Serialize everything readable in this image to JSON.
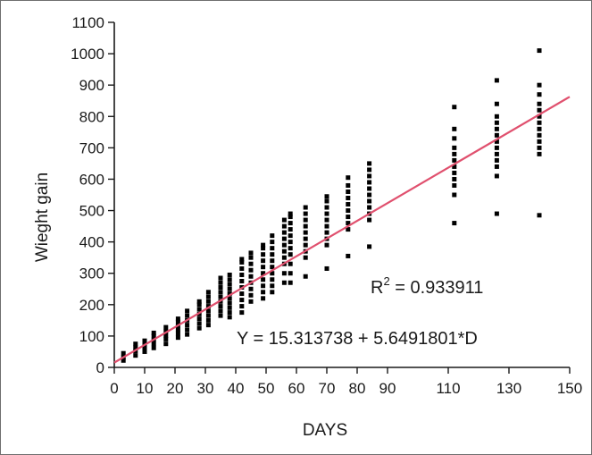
{
  "chart_data": {
    "type": "scatter",
    "title": "",
    "xlabel": "DAYS",
    "ylabel": "Wieght gain",
    "xlim": [
      0,
      150
    ],
    "ylim": [
      0,
      1100
    ],
    "x_ticks": [
      0,
      10,
      20,
      30,
      40,
      50,
      60,
      70,
      80,
      90,
      110,
      130,
      150
    ],
    "y_ticks": [
      0,
      100,
      200,
      300,
      400,
      500,
      600,
      700,
      800,
      900,
      1000,
      1100
    ],
    "grid": false,
    "colors": {
      "points": "#000000",
      "fit_line": "#e0506e",
      "axes": "#1a1a1a"
    },
    "fit_line": {
      "intercept": 15.313738,
      "slope": 5.6491801,
      "x_range": [
        0,
        150
      ]
    },
    "annotations": {
      "r2_prefix": "R",
      "r2_sup": "2",
      "r2_suffix": " = 0.933911",
      "equation": "Y = 15.313738 + 5.6491801*D"
    },
    "series": [
      {
        "points": [
          [
            3,
            22
          ],
          [
            3,
            32
          ],
          [
            3,
            45
          ],
          [
            7,
            38
          ],
          [
            7,
            52
          ],
          [
            7,
            63
          ],
          [
            7,
            75
          ],
          [
            10,
            50
          ],
          [
            10,
            62
          ],
          [
            10,
            72
          ],
          [
            10,
            85
          ],
          [
            13,
            62
          ],
          [
            13,
            75
          ],
          [
            13,
            88
          ],
          [
            13,
            100
          ],
          [
            13,
            110
          ],
          [
            17,
            75
          ],
          [
            17,
            90
          ],
          [
            17,
            102
          ],
          [
            17,
            115
          ],
          [
            17,
            128
          ],
          [
            21,
            95
          ],
          [
            21,
            108
          ],
          [
            21,
            120
          ],
          [
            21,
            132
          ],
          [
            21,
            145
          ],
          [
            21,
            155
          ],
          [
            24,
            105
          ],
          [
            24,
            120
          ],
          [
            24,
            135
          ],
          [
            24,
            150
          ],
          [
            24,
            165
          ],
          [
            24,
            180
          ],
          [
            28,
            125
          ],
          [
            28,
            140
          ],
          [
            28,
            155
          ],
          [
            28,
            170
          ],
          [
            28,
            185
          ],
          [
            28,
            200
          ],
          [
            28,
            210
          ],
          [
            31,
            135
          ],
          [
            31,
            150
          ],
          [
            31,
            165
          ],
          [
            31,
            180
          ],
          [
            31,
            195
          ],
          [
            31,
            210
          ],
          [
            31,
            225
          ],
          [
            31,
            240
          ],
          [
            35,
            165
          ],
          [
            35,
            180
          ],
          [
            35,
            195
          ],
          [
            35,
            210
          ],
          [
            35,
            225
          ],
          [
            35,
            240
          ],
          [
            35,
            255
          ],
          [
            35,
            270
          ],
          [
            35,
            285
          ],
          [
            38,
            160
          ],
          [
            38,
            175
          ],
          [
            38,
            190
          ],
          [
            38,
            205
          ],
          [
            38,
            220
          ],
          [
            38,
            235
          ],
          [
            38,
            250
          ],
          [
            38,
            265
          ],
          [
            38,
            280
          ],
          [
            38,
            295
          ],
          [
            42,
            175
          ],
          [
            42,
            195
          ],
          [
            42,
            215
          ],
          [
            42,
            235
          ],
          [
            42,
            255
          ],
          [
            42,
            275
          ],
          [
            42,
            295
          ],
          [
            42,
            315
          ],
          [
            42,
            335
          ],
          [
            42,
            345
          ],
          [
            45,
            210
          ],
          [
            45,
            230
          ],
          [
            45,
            250
          ],
          [
            45,
            270
          ],
          [
            45,
            290
          ],
          [
            45,
            310
          ],
          [
            45,
            330
          ],
          [
            45,
            350
          ],
          [
            45,
            365
          ],
          [
            49,
            220
          ],
          [
            49,
            240
          ],
          [
            49,
            260
          ],
          [
            49,
            280
          ],
          [
            49,
            300
          ],
          [
            49,
            320
          ],
          [
            49,
            340
          ],
          [
            49,
            360
          ],
          [
            49,
            380
          ],
          [
            49,
            390
          ],
          [
            52,
            240
          ],
          [
            52,
            260
          ],
          [
            52,
            280
          ],
          [
            52,
            300
          ],
          [
            52,
            320
          ],
          [
            52,
            340
          ],
          [
            52,
            360
          ],
          [
            52,
            380
          ],
          [
            52,
            400
          ],
          [
            52,
            420
          ],
          [
            56,
            270
          ],
          [
            56,
            300
          ],
          [
            56,
            330
          ],
          [
            56,
            350
          ],
          [
            56,
            370
          ],
          [
            56,
            390
          ],
          [
            56,
            410
          ],
          [
            56,
            430
          ],
          [
            56,
            450
          ],
          [
            56,
            470
          ],
          [
            58,
            270
          ],
          [
            58,
            300
          ],
          [
            58,
            330
          ],
          [
            58,
            360
          ],
          [
            58,
            380
          ],
          [
            58,
            400
          ],
          [
            58,
            420
          ],
          [
            58,
            440
          ],
          [
            58,
            460
          ],
          [
            58,
            480
          ],
          [
            58,
            490
          ],
          [
            63,
            290
          ],
          [
            63,
            350
          ],
          [
            63,
            370
          ],
          [
            63,
            390
          ],
          [
            63,
            410
          ],
          [
            63,
            430
          ],
          [
            63,
            450
          ],
          [
            63,
            470
          ],
          [
            63,
            490
          ],
          [
            63,
            510
          ],
          [
            70,
            315
          ],
          [
            70,
            390
          ],
          [
            70,
            410
          ],
          [
            70,
            430
          ],
          [
            70,
            450
          ],
          [
            70,
            470
          ],
          [
            70,
            490
          ],
          [
            70,
            510
          ],
          [
            70,
            530
          ],
          [
            70,
            545
          ],
          [
            77,
            355
          ],
          [
            77,
            440
          ],
          [
            77,
            460
          ],
          [
            77,
            480
          ],
          [
            77,
            500
          ],
          [
            77,
            520
          ],
          [
            77,
            540
          ],
          [
            77,
            560
          ],
          [
            77,
            580
          ],
          [
            77,
            605
          ],
          [
            84,
            385
          ],
          [
            84,
            470
          ],
          [
            84,
            490
          ],
          [
            84,
            510
          ],
          [
            84,
            530
          ],
          [
            84,
            550
          ],
          [
            84,
            570
          ],
          [
            84,
            590
          ],
          [
            84,
            610
          ],
          [
            84,
            630
          ],
          [
            84,
            650
          ],
          [
            112,
            460
          ],
          [
            112,
            550
          ],
          [
            112,
            580
          ],
          [
            112,
            600
          ],
          [
            112,
            620
          ],
          [
            112,
            640
          ],
          [
            112,
            660
          ],
          [
            112,
            680
          ],
          [
            112,
            700
          ],
          [
            112,
            730
          ],
          [
            112,
            760
          ],
          [
            112,
            830
          ],
          [
            126,
            490
          ],
          [
            126,
            610
          ],
          [
            126,
            640
          ],
          [
            126,
            660
          ],
          [
            126,
            680
          ],
          [
            126,
            700
          ],
          [
            126,
            720
          ],
          [
            126,
            740
          ],
          [
            126,
            760
          ],
          [
            126,
            780
          ],
          [
            126,
            800
          ],
          [
            126,
            840
          ],
          [
            126,
            915
          ],
          [
            140,
            485
          ],
          [
            140,
            680
          ],
          [
            140,
            700
          ],
          [
            140,
            720
          ],
          [
            140,
            740
          ],
          [
            140,
            760
          ],
          [
            140,
            780
          ],
          [
            140,
            800
          ],
          [
            140,
            820
          ],
          [
            140,
            840
          ],
          [
            140,
            870
          ],
          [
            140,
            900
          ],
          [
            140,
            1010
          ]
        ]
      }
    ]
  }
}
